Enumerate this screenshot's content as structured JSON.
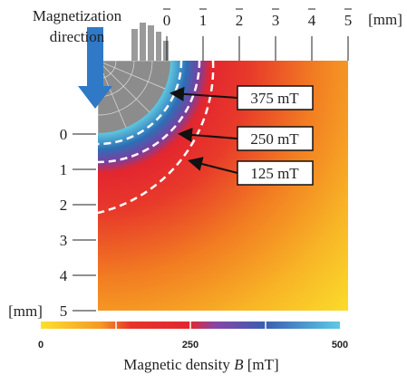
{
  "figure": {
    "annotation": {
      "line1": "Magnetization",
      "line2": "direction"
    },
    "top_axis": {
      "ticks": [
        0,
        1,
        2,
        3,
        4,
        5
      ],
      "unit": "[mm]"
    },
    "left_axis": {
      "ticks": [
        0,
        1,
        2,
        3,
        4,
        5
      ],
      "unit": "[mm]"
    },
    "contours": [
      "375 mT",
      "250 mT",
      "125 mT"
    ],
    "colorbar": {
      "ticks": [
        0,
        250,
        500
      ],
      "label_prefix": "Magnetic density",
      "label_symbol": "B",
      "label_unit": "[mT]"
    }
  }
}
